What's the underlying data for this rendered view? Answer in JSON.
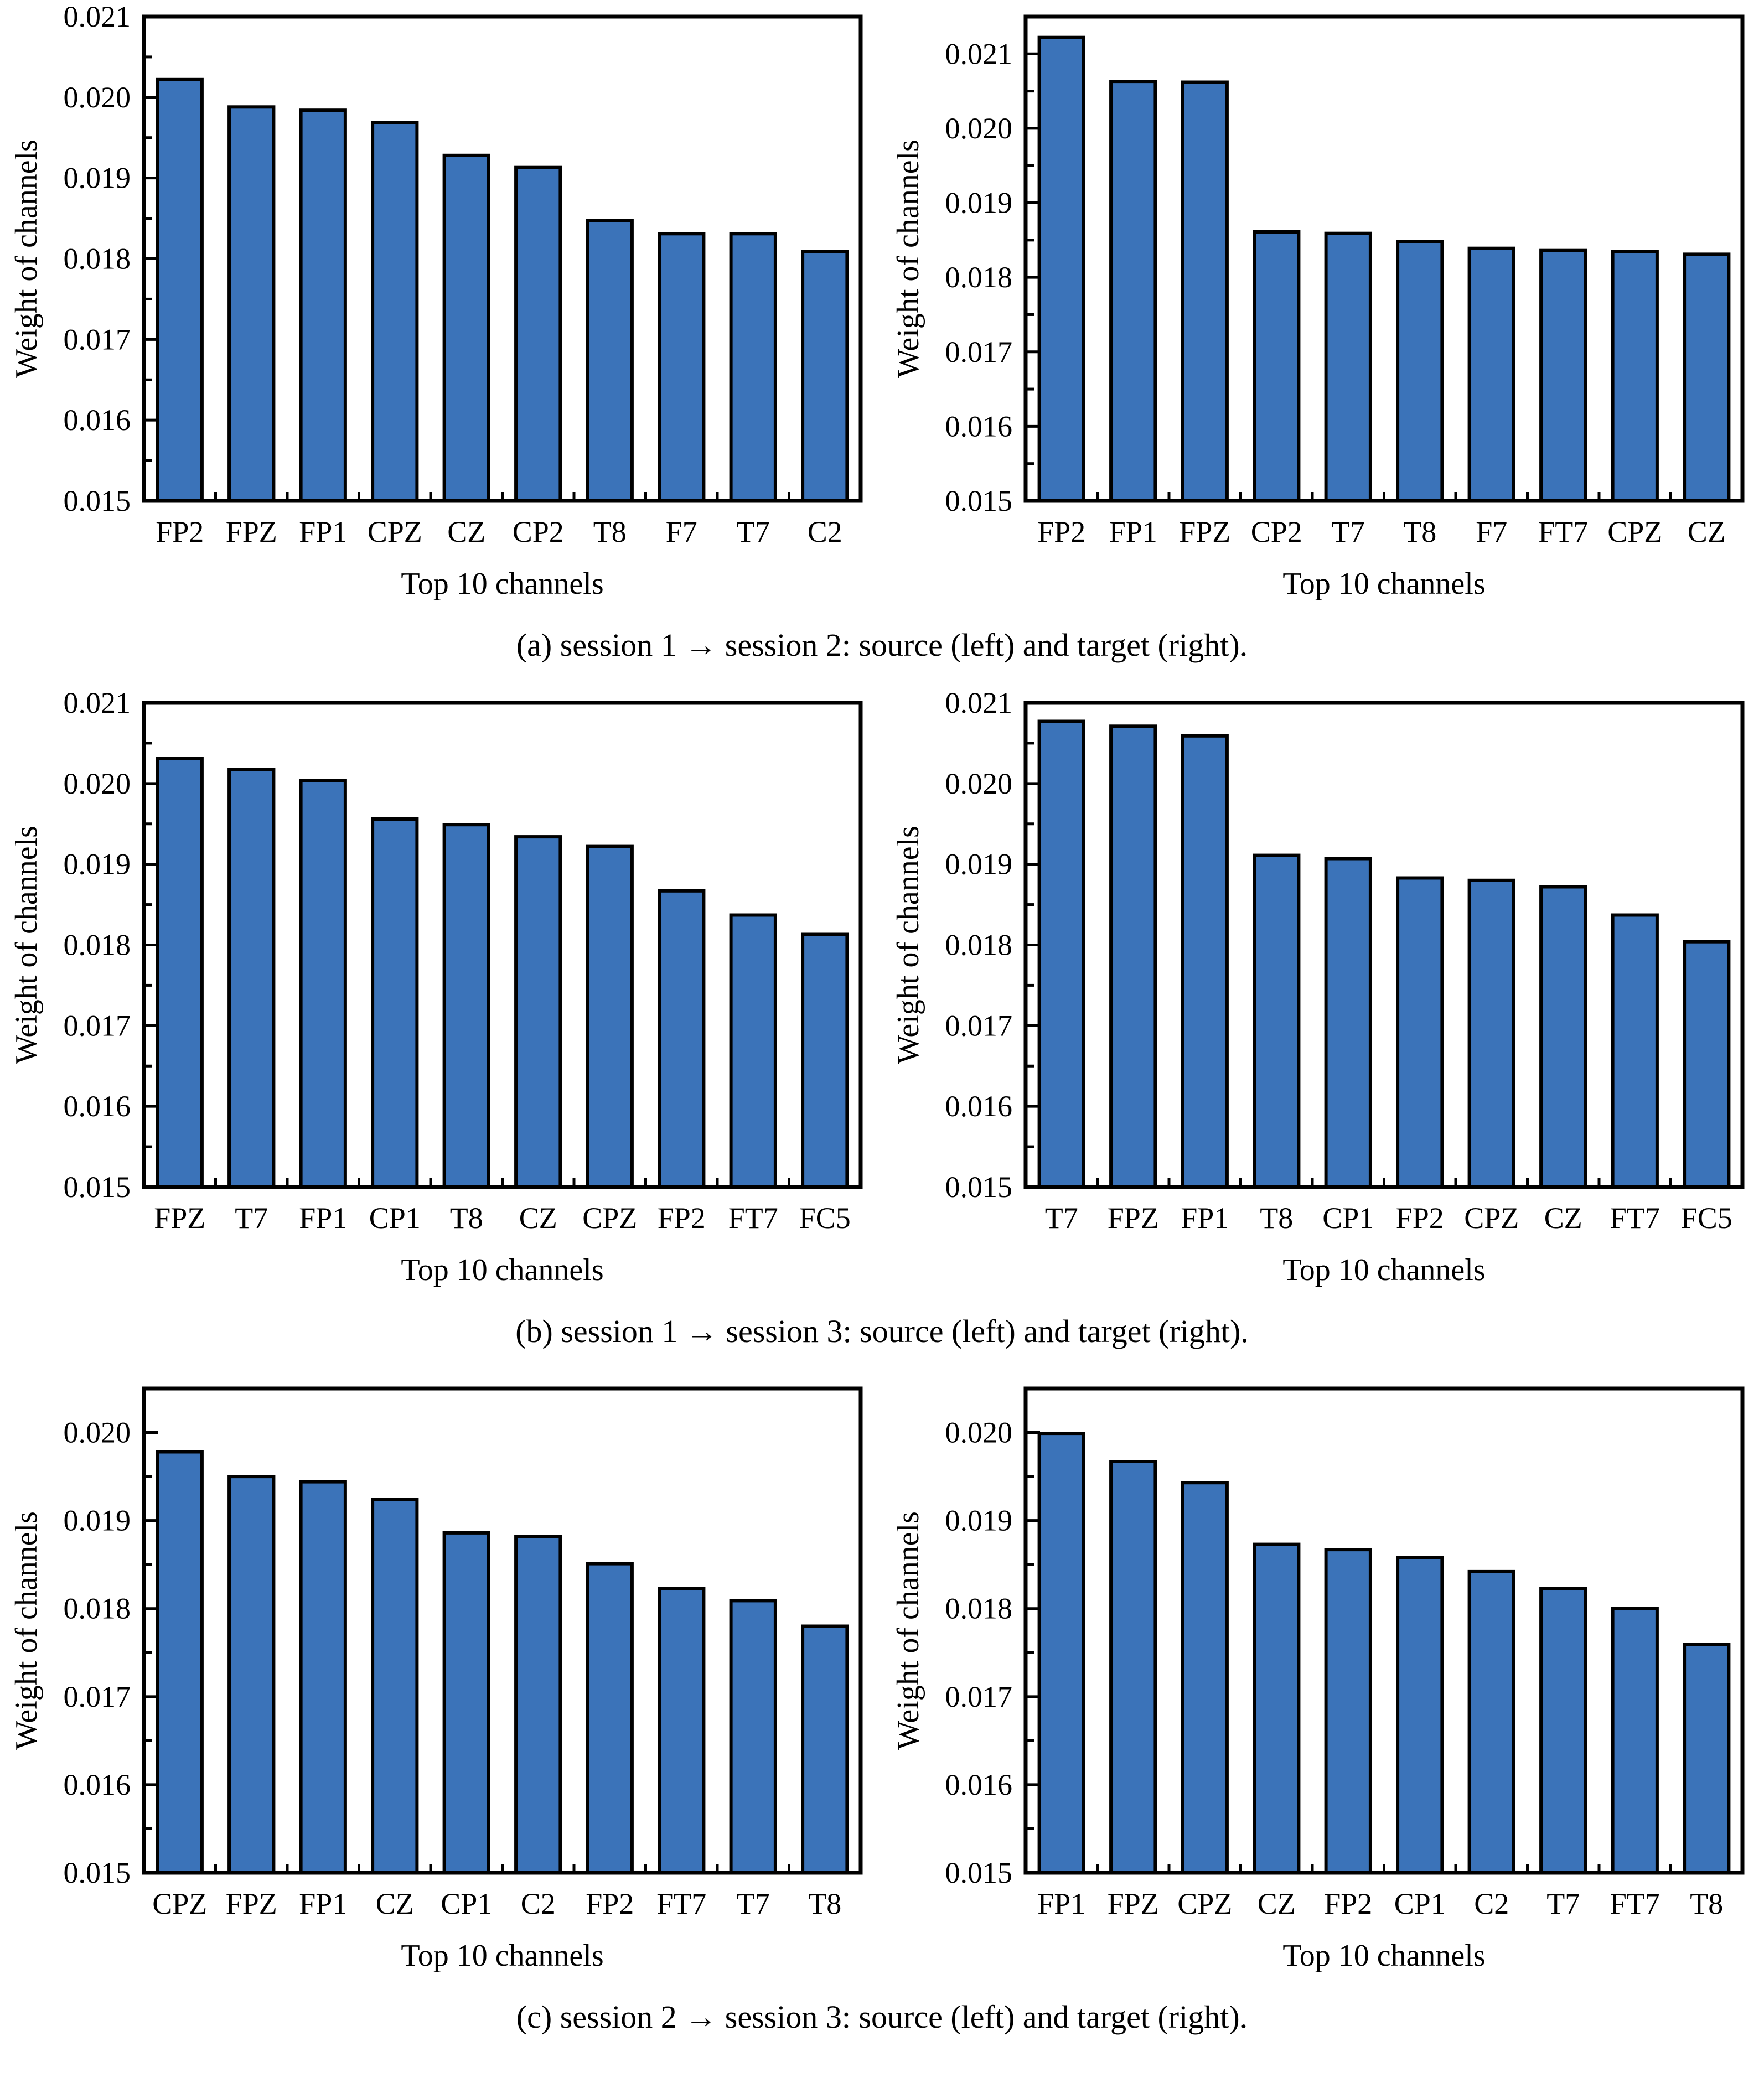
{
  "colors": {
    "background": "#ffffff",
    "bar_fill": "#3B73B9",
    "bar_edge": "#000000",
    "axis": "#000000",
    "text": "#000000"
  },
  "captions": [
    "(a)  session 1 → session 2: source (left) and target (right).",
    "(b)  session 1 → session 3: source (left) and target (right).",
    "(c)  session 2 → session 3: source (left) and target (right)."
  ],
  "chart_data": [
    {
      "type": "bar",
      "panel": "a-source",
      "title": "",
      "xlabel": "Top 10 channels",
      "ylabel": "Weight of channels",
      "categories": [
        "FP2",
        "FPZ",
        "FP1",
        "CPZ",
        "CZ",
        "CP2",
        "T8",
        "F7",
        "T7",
        "C2"
      ],
      "values": [
        0.02022,
        0.01988,
        0.01984,
        0.01969,
        0.01928,
        0.01913,
        0.01847,
        0.01831,
        0.01831,
        0.01809
      ],
      "ylim": [
        0.015,
        0.021
      ],
      "ytick_labels": [
        "0.015",
        "0.016",
        "0.017",
        "0.018",
        "0.019",
        "0.020",
        "0.021"
      ],
      "yminor_step": 0.0005,
      "grid": false,
      "legend": null
    },
    {
      "type": "bar",
      "panel": "a-target",
      "title": "",
      "xlabel": "Top 10 channels",
      "ylabel": "Weight of channels",
      "categories": [
        "FP2",
        "FP1",
        "FPZ",
        "CP2",
        "T7",
        "T8",
        "F7",
        "FT7",
        "CPZ",
        "CZ"
      ],
      "values": [
        0.02122,
        0.02063,
        0.02062,
        0.01861,
        0.01859,
        0.01848,
        0.01839,
        0.01836,
        0.01835,
        0.01831
      ],
      "ylim": [
        0.015,
        0.0215
      ],
      "ytick_labels": [
        "0.015",
        "0.016",
        "0.017",
        "0.018",
        "0.019",
        "0.020",
        "0.021"
      ],
      "yminor_step": 0.0005,
      "grid": false,
      "legend": null
    },
    {
      "type": "bar",
      "panel": "b-source",
      "title": "",
      "xlabel": "Top 10 channels",
      "ylabel": "Weight of channels",
      "categories": [
        "FPZ",
        "T7",
        "FP1",
        "CP1",
        "T8",
        "CZ",
        "CPZ",
        "FP2",
        "FT7",
        "FC5"
      ],
      "values": [
        0.02031,
        0.02017,
        0.02004,
        0.01956,
        0.01949,
        0.01934,
        0.01922,
        0.01867,
        0.01837,
        0.01813
      ],
      "ylim": [
        0.015,
        0.021
      ],
      "ytick_labels": [
        "0.015",
        "0.016",
        "0.017",
        "0.018",
        "0.019",
        "0.020",
        "0.021"
      ],
      "yminor_step": 0.0005,
      "grid": false,
      "legend": null
    },
    {
      "type": "bar",
      "panel": "b-target",
      "title": "",
      "xlabel": "Top 10 channels",
      "ylabel": "Weight of channels",
      "categories": [
        "T7",
        "FPZ",
        "FP1",
        "T8",
        "CP1",
        "FP2",
        "CPZ",
        "CZ",
        "FT7",
        "FC5"
      ],
      "values": [
        0.02077,
        0.02071,
        0.02059,
        0.01911,
        0.01907,
        0.01883,
        0.0188,
        0.01872,
        0.01837,
        0.01804
      ],
      "ylim": [
        0.015,
        0.021
      ],
      "ytick_labels": [
        "0.015",
        "0.016",
        "0.017",
        "0.018",
        "0.019",
        "0.020",
        "0.021"
      ],
      "yminor_step": 0.0005,
      "grid": false,
      "legend": null
    },
    {
      "type": "bar",
      "panel": "c-source",
      "title": "",
      "xlabel": "Top 10 channels",
      "ylabel": "Weight of channels",
      "categories": [
        "CPZ",
        "FPZ",
        "FP1",
        "CZ",
        "CP1",
        "C2",
        "FP2",
        "FT7",
        "T7",
        "T8"
      ],
      "values": [
        0.01978,
        0.0195,
        0.01944,
        0.01924,
        0.01886,
        0.01882,
        0.01851,
        0.01823,
        0.01809,
        0.0178
      ],
      "ylim": [
        0.015,
        0.0205
      ],
      "ytick_labels": [
        "0.015",
        "0.016",
        "0.017",
        "0.018",
        "0.019",
        "0.020"
      ],
      "yminor_step": 0.0005,
      "grid": false,
      "legend": null
    },
    {
      "type": "bar",
      "panel": "c-target",
      "title": "",
      "xlabel": "Top 10 channels",
      "ylabel": "Weight of channels",
      "categories": [
        "FP1",
        "FPZ",
        "CPZ",
        "CZ",
        "FP2",
        "CP1",
        "C2",
        "T7",
        "FT7",
        "T8"
      ],
      "values": [
        0.01999,
        0.01967,
        0.01943,
        0.01873,
        0.01867,
        0.01858,
        0.01842,
        0.01823,
        0.018,
        0.01759
      ],
      "ylim": [
        0.015,
        0.0205
      ],
      "ytick_labels": [
        "0.015",
        "0.016",
        "0.017",
        "0.018",
        "0.019",
        "0.020"
      ],
      "yminor_step": 0.0005,
      "grid": false,
      "legend": null
    }
  ]
}
